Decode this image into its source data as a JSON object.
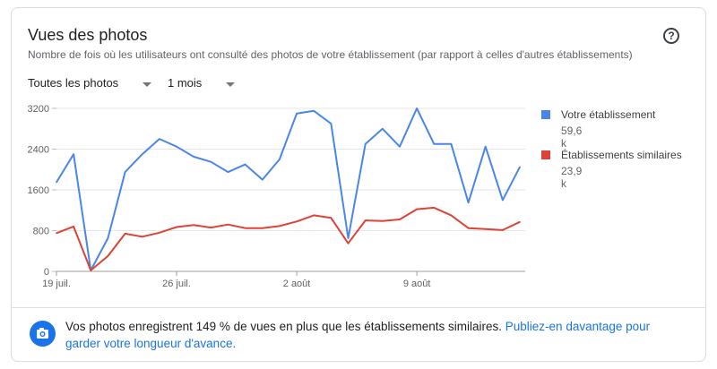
{
  "card": {
    "title": "Vues des photos",
    "subtitle": "Nombre de fois où les utilisateurs ont consulté des photos de votre établissement (par rapport à celles d'autres établissements)",
    "help_icon": "help-circle-icon",
    "help_glyph": "?"
  },
  "filters": {
    "photo_type": "Toutes les photos",
    "period": "1 mois"
  },
  "chart_data": {
    "type": "line",
    "x": [
      "19 juil.",
      "20 juil.",
      "21 juil.",
      "22 juil.",
      "23 juil.",
      "24 juil.",
      "25 juil.",
      "26 juil.",
      "27 juil.",
      "28 juil.",
      "29 juil.",
      "30 juil.",
      "31 juil.",
      "1 août",
      "2 août",
      "3 août",
      "4 août",
      "5 août",
      "6 août",
      "7 août",
      "8 août",
      "9 août",
      "10 août",
      "11 août",
      "12 août",
      "13 août",
      "14 août",
      "15 août"
    ],
    "x_ticks": [
      "19 juil.",
      "26 juil.",
      "2 août",
      "9 août"
    ],
    "ylim": [
      0,
      3200
    ],
    "y_ticks": [
      0,
      800,
      1600,
      2400,
      3200
    ],
    "y_tick_labels": [
      "0",
      "800",
      "1600",
      "2400",
      "3200"
    ],
    "grid": true,
    "legend_position": "right",
    "series": [
      {
        "name": "Votre établissement",
        "total": "59,6 k",
        "color": "#4a86e8",
        "values": [
          1750,
          2300,
          20,
          650,
          1950,
          2300,
          2600,
          2450,
          2250,
          2150,
          1950,
          2100,
          1800,
          2200,
          3100,
          3150,
          2900,
          650,
          2500,
          2800,
          2450,
          3200,
          2500,
          2500,
          1350,
          2450,
          1400,
          2050
        ]
      },
      {
        "name": "Établissements similaires",
        "total": "23,9 k",
        "color": "#db4437",
        "values": [
          750,
          880,
          20,
          300,
          740,
          680,
          760,
          870,
          910,
          860,
          920,
          850,
          850,
          890,
          980,
          1100,
          1050,
          550,
          1000,
          990,
          1020,
          1220,
          1250,
          1100,
          850,
          830,
          810,
          970
        ]
      }
    ]
  },
  "footer": {
    "icon": "camera-icon",
    "message": "Vos photos enregistrent 149 % de vues en plus que les établissements similaires. ",
    "link": "Publiez-en davantage pour garder votre longueur d'avance."
  }
}
